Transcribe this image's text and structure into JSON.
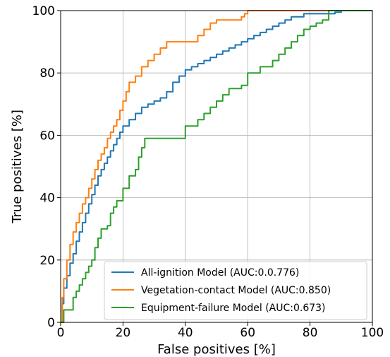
{
  "chart_data": {
    "type": "line",
    "xlabel": "False positives [%]",
    "ylabel": "True positives [%]",
    "xlim": [
      0,
      100
    ],
    "ylim": [
      0,
      100
    ],
    "xticks": [
      0,
      20,
      40,
      60,
      80,
      100
    ],
    "yticks": [
      0,
      20,
      40,
      60,
      80,
      100
    ],
    "grid": true,
    "legend_position": "lower-right",
    "series": [
      {
        "name": "All-ignition Model (AUC:0.0.776)",
        "color": "#1f77b4",
        "points": [
          [
            0,
            0
          ],
          [
            0.5,
            6
          ],
          [
            1,
            11
          ],
          [
            2,
            15
          ],
          [
            3,
            19
          ],
          [
            4,
            22
          ],
          [
            5,
            26
          ],
          [
            6,
            29
          ],
          [
            7,
            32
          ],
          [
            8,
            35
          ],
          [
            9,
            38
          ],
          [
            10,
            41
          ],
          [
            11,
            44
          ],
          [
            12,
            47
          ],
          [
            13,
            49
          ],
          [
            14,
            51
          ],
          [
            15,
            53
          ],
          [
            16,
            55
          ],
          [
            17,
            57
          ],
          [
            18,
            59
          ],
          [
            19,
            61
          ],
          [
            20,
            63
          ],
          [
            22,
            65
          ],
          [
            24,
            67
          ],
          [
            26,
            69
          ],
          [
            28,
            70
          ],
          [
            30,
            71
          ],
          [
            32,
            72
          ],
          [
            34,
            74
          ],
          [
            36,
            77
          ],
          [
            38,
            79
          ],
          [
            40,
            81
          ],
          [
            42,
            82
          ],
          [
            44,
            83
          ],
          [
            46,
            84
          ],
          [
            48,
            85
          ],
          [
            50,
            86
          ],
          [
            52,
            87
          ],
          [
            54,
            88
          ],
          [
            56,
            89
          ],
          [
            58,
            90
          ],
          [
            60,
            91
          ],
          [
            62,
            92
          ],
          [
            64,
            93
          ],
          [
            66,
            94
          ],
          [
            68,
            95
          ],
          [
            70,
            96
          ],
          [
            72,
            97
          ],
          [
            74,
            98
          ],
          [
            76,
            98
          ],
          [
            78,
            99
          ],
          [
            80,
            99
          ],
          [
            82,
            99
          ],
          [
            84,
            99
          ],
          [
            86,
            99
          ],
          [
            88,
            99.5
          ],
          [
            90,
            100
          ],
          [
            95,
            100
          ],
          [
            100,
            100
          ]
        ]
      },
      {
        "name": "Vegetation-contact Model (AUC:0.850)",
        "color": "#ff7f0e",
        "points": [
          [
            0,
            0
          ],
          [
            0.5,
            8
          ],
          [
            1,
            14
          ],
          [
            2,
            20
          ],
          [
            3,
            25
          ],
          [
            4,
            29
          ],
          [
            5,
            32
          ],
          [
            6,
            35
          ],
          [
            7,
            38
          ],
          [
            8,
            40
          ],
          [
            9,
            43
          ],
          [
            10,
            46
          ],
          [
            11,
            49
          ],
          [
            12,
            52
          ],
          [
            13,
            54
          ],
          [
            14,
            56
          ],
          [
            15,
            59
          ],
          [
            16,
            61
          ],
          [
            17,
            63
          ],
          [
            18,
            65
          ],
          [
            19,
            68
          ],
          [
            20,
            71
          ],
          [
            21,
            74
          ],
          [
            22,
            77
          ],
          [
            24,
            79
          ],
          [
            26,
            82
          ],
          [
            28,
            84
          ],
          [
            30,
            86
          ],
          [
            32,
            88
          ],
          [
            34,
            90
          ],
          [
            36,
            90
          ],
          [
            38,
            90
          ],
          [
            40,
            90
          ],
          [
            42,
            90
          ],
          [
            44,
            92
          ],
          [
            46,
            94
          ],
          [
            48,
            96
          ],
          [
            50,
            97
          ],
          [
            52,
            97
          ],
          [
            54,
            97
          ],
          [
            56,
            97
          ],
          [
            58,
            98
          ],
          [
            59,
            99
          ],
          [
            60,
            100
          ],
          [
            70,
            100
          ],
          [
            80,
            100
          ],
          [
            90,
            100
          ],
          [
            100,
            100
          ]
        ]
      },
      {
        "name": "Equipment-failure Model (AUC:0.673)",
        "color": "#2ca02c",
        "points": [
          [
            0,
            0
          ],
          [
            1,
            4
          ],
          [
            3,
            4
          ],
          [
            4,
            8
          ],
          [
            5,
            10
          ],
          [
            6,
            12
          ],
          [
            7,
            14
          ],
          [
            8,
            16
          ],
          [
            9,
            18
          ],
          [
            10,
            20
          ],
          [
            11,
            24
          ],
          [
            12,
            27
          ],
          [
            13,
            30
          ],
          [
            14,
            30
          ],
          [
            15,
            31
          ],
          [
            16,
            35
          ],
          [
            17,
            37
          ],
          [
            18,
            39
          ],
          [
            20,
            43
          ],
          [
            22,
            47
          ],
          [
            24,
            49
          ],
          [
            25,
            53
          ],
          [
            26,
            56
          ],
          [
            27,
            59
          ],
          [
            30,
            59
          ],
          [
            33,
            59
          ],
          [
            36,
            59
          ],
          [
            39,
            59
          ],
          [
            40,
            63
          ],
          [
            42,
            63
          ],
          [
            44,
            65
          ],
          [
            46,
            67
          ],
          [
            48,
            69
          ],
          [
            50,
            71
          ],
          [
            52,
            73
          ],
          [
            54,
            75
          ],
          [
            56,
            75
          ],
          [
            58,
            76
          ],
          [
            60,
            80
          ],
          [
            62,
            80
          ],
          [
            64,
            82
          ],
          [
            66,
            82
          ],
          [
            68,
            84
          ],
          [
            70,
            86
          ],
          [
            72,
            88
          ],
          [
            74,
            90
          ],
          [
            76,
            92
          ],
          [
            78,
            94
          ],
          [
            80,
            95
          ],
          [
            82,
            96
          ],
          [
            84,
            97
          ],
          [
            86,
            100
          ],
          [
            90,
            100
          ],
          [
            100,
            100
          ]
        ]
      }
    ]
  }
}
